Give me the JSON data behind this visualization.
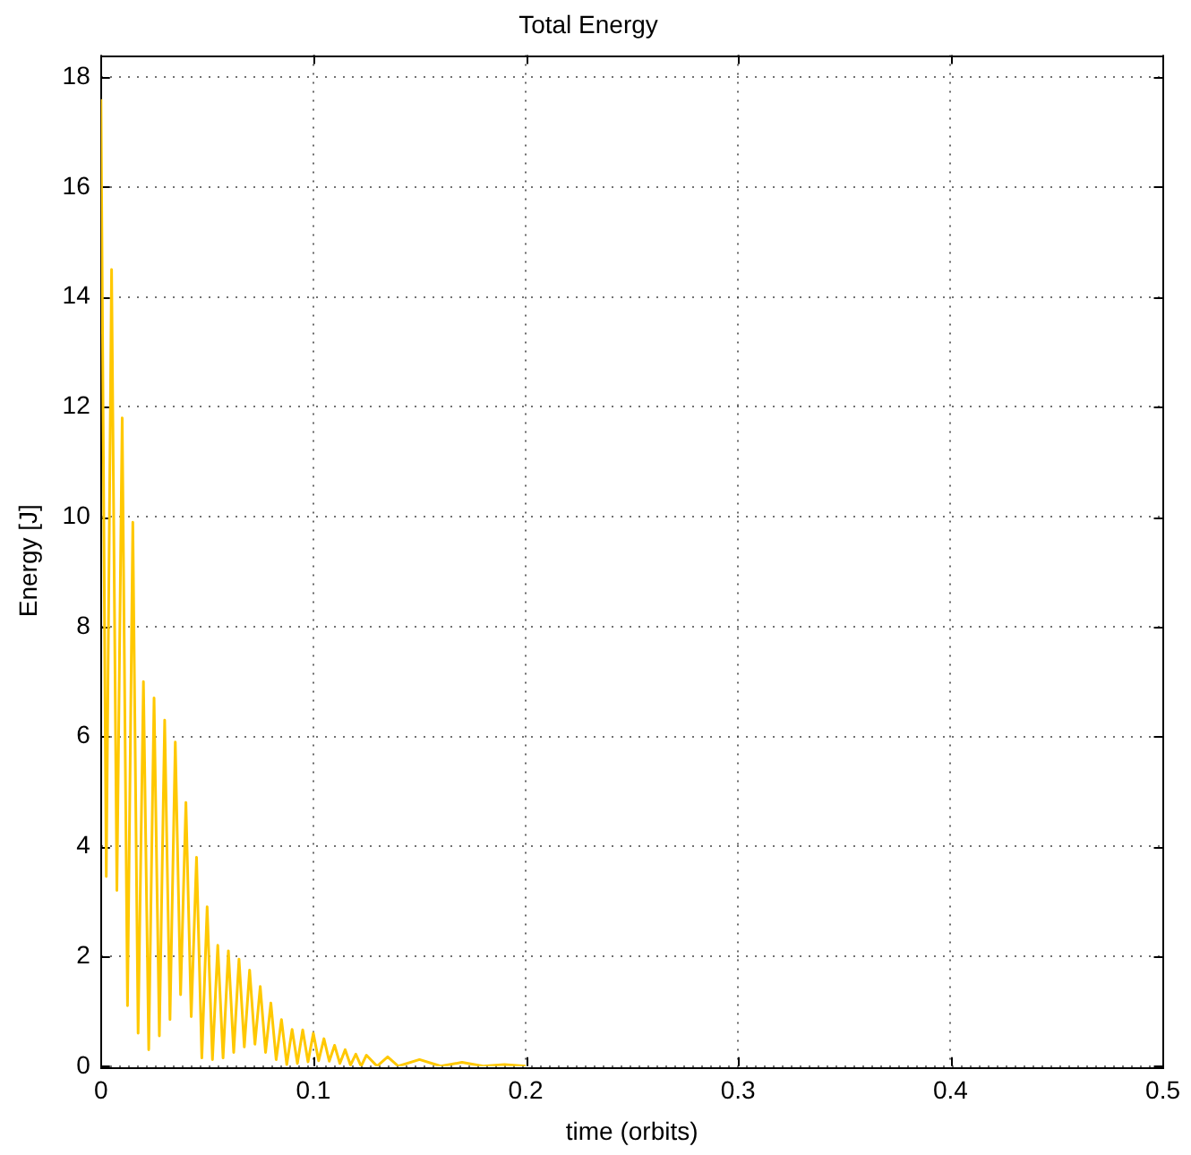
{
  "chart_data": {
    "type": "line",
    "title": "Total Energy",
    "xlabel": "time (orbits)",
    "ylabel": "Energy [J]",
    "xlim": [
      0,
      0.5
    ],
    "xticks": [
      0,
      0.1,
      0.2,
      0.3,
      0.4,
      0.5
    ],
    "ylim": [
      0,
      18.4
    ],
    "yticks": [
      0,
      2,
      4,
      6,
      8,
      10,
      12,
      14,
      16,
      18
    ],
    "grid": true,
    "legend": false,
    "marker": "none",
    "line_style": "solid",
    "series": [
      {
        "color": "#ffc800",
        "x": [
          0,
          0.0025,
          0.005,
          0.0075,
          0.01,
          0.0125,
          0.015,
          0.0175,
          0.02,
          0.0225,
          0.025,
          0.0275,
          0.03,
          0.0325,
          0.035,
          0.0375,
          0.04,
          0.0425,
          0.045,
          0.0475,
          0.05,
          0.0525,
          0.055,
          0.0575,
          0.06,
          0.0625,
          0.065,
          0.0675,
          0.07,
          0.0725,
          0.075,
          0.0775,
          0.08,
          0.0825,
          0.085,
          0.0875,
          0.09,
          0.0925,
          0.095,
          0.0975,
          0.1,
          0.1025,
          0.105,
          0.1075,
          0.11,
          0.1125,
          0.115,
          0.1175,
          0.12,
          0.1225,
          0.125,
          0.13,
          0.135,
          0.14,
          0.15,
          0.16,
          0.17,
          0.18,
          0.19,
          0.2
        ],
        "values": [
          17.6,
          3.45,
          14.5,
          3.2,
          11.8,
          1.1,
          9.9,
          0.6,
          7.0,
          0.3,
          6.7,
          0.55,
          6.3,
          0.85,
          5.9,
          1.3,
          4.8,
          0.9,
          3.8,
          0.15,
          2.9,
          0.12,
          2.2,
          0.15,
          2.1,
          0.25,
          1.95,
          0.35,
          1.75,
          0.4,
          1.45,
          0.25,
          1.15,
          0.12,
          0.85,
          0.03,
          0.67,
          0.05,
          0.66,
          0.08,
          0.6,
          0.1,
          0.5,
          0.09,
          0.38,
          0.05,
          0.3,
          0.02,
          0.22,
          0,
          0.2,
          0,
          0.17,
          0,
          0.12,
          0,
          0.07,
          0,
          0.03,
          0
        ]
      }
    ]
  }
}
